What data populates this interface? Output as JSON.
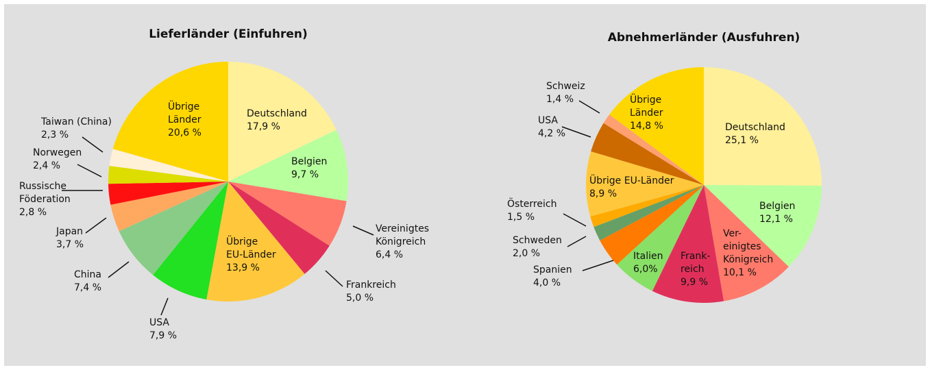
{
  "chart_data": [
    {
      "type": "pie",
      "title": "Lieferländer (Einfuhren)",
      "categories": [
        "Deutschland",
        "Belgien",
        "Vereinigtes\nKönigreich",
        "Frankreich",
        "Übrige\nEU-Länder",
        "USA",
        "China",
        "Japan",
        "Russische\nFöderation",
        "Norwegen",
        "Taiwan (China)",
        "Übrige\nLänder"
      ],
      "values": [
        17.9,
        9.7,
        6.4,
        5.0,
        13.9,
        7.9,
        7.4,
        3.7,
        2.8,
        2.4,
        2.3,
        20.6
      ],
      "value_labels": [
        "17,9 %",
        "9,7 %",
        "6,4 %",
        "5,0 %",
        "13,9 %",
        "7,9 %",
        "7,4 %",
        "3,7 %",
        "2,8 %",
        "2,4 %",
        "2,3 %",
        "20,6 %"
      ],
      "colors": [
        "#fff099",
        "#b8ff9e",
        "#ff7a6b",
        "#e0305a",
        "#ffc83c",
        "#22e022",
        "#88cc88",
        "#ffa860",
        "#ff1010",
        "#dddd00",
        "#fff0d8",
        "#ffd700"
      ]
    },
    {
      "type": "pie",
      "title": "Abnehmerländer (Ausfuhren)",
      "categories": [
        "Deutschland",
        "Belgien",
        "Ver-\neinigtes\nKönigreich",
        "Frank-\nreich",
        "Italien",
        "Spanien",
        "Schweden",
        "Österreich",
        "Übrige EU-Länder",
        "USA",
        "Schweiz",
        "Übrige\nLänder"
      ],
      "values": [
        25.1,
        12.1,
        10.1,
        9.9,
        6.0,
        4.0,
        2.0,
        1.5,
        8.9,
        4.2,
        1.4,
        14.8
      ],
      "value_labels": [
        "25,1 %",
        "12,1 %",
        "10,1 %",
        "9,9 %",
        "6,0%",
        "4,0 %",
        "2,0 %",
        "1,5 %",
        "8,9 %",
        "4,2 %",
        "1,4 %",
        "14,8 %"
      ],
      "colors": [
        "#fff099",
        "#b8ff9e",
        "#ff7a6b",
        "#e0305a",
        "#88e066",
        "#ff7a00",
        "#66a066",
        "#ffaa00",
        "#ffc83c",
        "#cc6a00",
        "#ffa070",
        "#ffd700"
      ]
    }
  ]
}
